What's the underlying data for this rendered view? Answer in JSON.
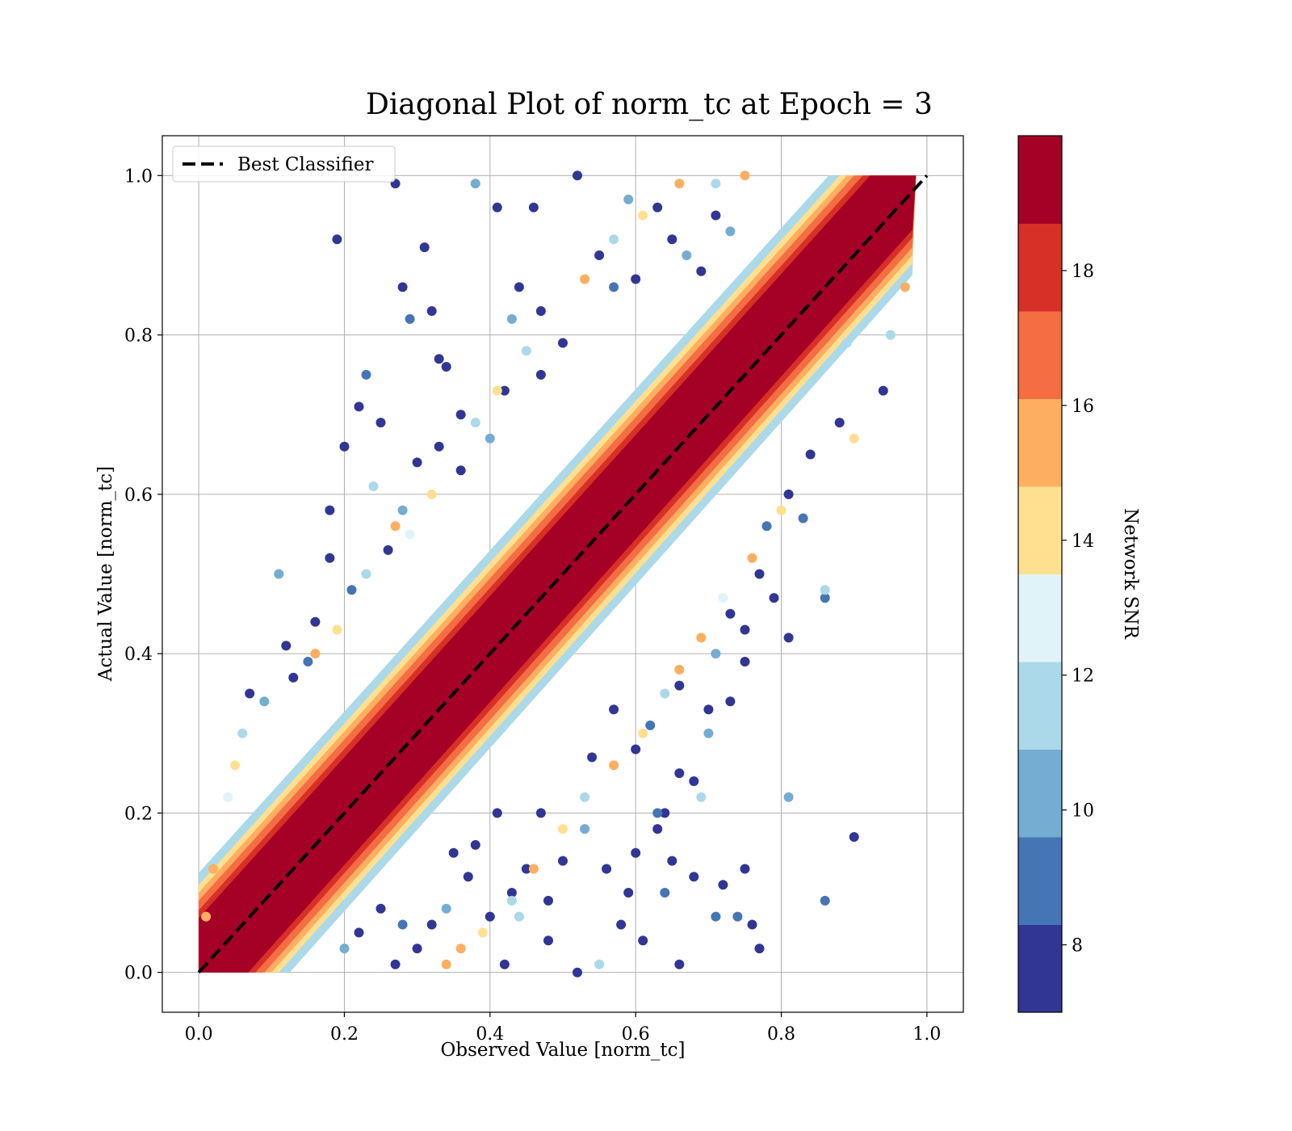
{
  "chart_data": {
    "type": "scatter",
    "title": "Diagonal Plot of norm_tc at Epoch = 3",
    "xlabel": "Observed Value [norm_tc]",
    "ylabel": "Actual Value [norm_tc]",
    "xlim": [
      -0.05,
      1.05
    ],
    "ylim": [
      -0.05,
      1.05
    ],
    "x_ticks": [
      "0.0",
      "0.2",
      "0.4",
      "0.6",
      "0.8",
      "1.0"
    ],
    "y_ticks": [
      "0.0",
      "0.2",
      "0.4",
      "0.6",
      "0.8",
      "1.0"
    ],
    "grid": true,
    "legend": {
      "placement": "top-left",
      "entries": [
        "Best Classifier"
      ]
    },
    "reference_line": {
      "name": "Best Classifier",
      "style": "dashed",
      "color": "#000000",
      "x": [
        0,
        1
      ],
      "y": [
        0,
        1
      ]
    },
    "colorbar": {
      "label": "Network SNR",
      "range": [
        7,
        20
      ],
      "ticks": [
        "8",
        "10",
        "12",
        "14",
        "16",
        "18"
      ],
      "tick_values": [
        8,
        10,
        12,
        14,
        16,
        18
      ],
      "colors": [
        "#313695",
        "#4575b4",
        "#74add1",
        "#abd9e9",
        "#e0f3f8",
        "#fee090",
        "#fdae61",
        "#f46d43",
        "#d73027",
        "#a50026"
      ]
    },
    "points_summary": "dense band of high-SNR points along y = x; lower-SNR points scattered farther from the diagonal",
    "points": [
      [
        0.19,
        0.92,
        8
      ],
      [
        0.27,
        0.99,
        8
      ],
      [
        0.38,
        0.99,
        10
      ],
      [
        0.52,
        1.0,
        8
      ],
      [
        0.59,
        0.97,
        10
      ],
      [
        0.46,
        0.96,
        8
      ],
      [
        0.41,
        0.96,
        8
      ],
      [
        0.31,
        0.91,
        8
      ],
      [
        0.28,
        0.86,
        8
      ],
      [
        0.29,
        0.82,
        9
      ],
      [
        0.32,
        0.83,
        8
      ],
      [
        0.33,
        0.77,
        8
      ],
      [
        0.23,
        0.75,
        9
      ],
      [
        0.22,
        0.71,
        8
      ],
      [
        0.25,
        0.69,
        8
      ],
      [
        0.2,
        0.66,
        8
      ],
      [
        0.24,
        0.61,
        12
      ],
      [
        0.3,
        0.64,
        8
      ],
      [
        0.18,
        0.58,
        8
      ],
      [
        0.11,
        0.5,
        10
      ],
      [
        0.18,
        0.52,
        8
      ],
      [
        0.12,
        0.41,
        8
      ],
      [
        0.13,
        0.37,
        8
      ],
      [
        0.07,
        0.35,
        8
      ],
      [
        0.09,
        0.34,
        10
      ],
      [
        0.21,
        0.48,
        9
      ],
      [
        0.16,
        0.44,
        8
      ],
      [
        0.15,
        0.39,
        9
      ],
      [
        0.34,
        0.76,
        8
      ],
      [
        0.36,
        0.7,
        8
      ],
      [
        0.44,
        0.86,
        8
      ],
      [
        0.47,
        0.83,
        8
      ],
      [
        0.43,
        0.82,
        10
      ],
      [
        0.55,
        0.9,
        8
      ],
      [
        0.57,
        0.86,
        9
      ],
      [
        0.5,
        0.79,
        8
      ],
      [
        0.42,
        0.73,
        8
      ],
      [
        0.47,
        0.75,
        8
      ],
      [
        0.4,
        0.67,
        10
      ],
      [
        0.36,
        0.63,
        8
      ],
      [
        0.33,
        0.66,
        8
      ],
      [
        0.28,
        0.58,
        10
      ],
      [
        0.26,
        0.53,
        8
      ],
      [
        0.63,
        0.96,
        8
      ],
      [
        0.65,
        0.92,
        8
      ],
      [
        0.6,
        0.87,
        8
      ],
      [
        0.67,
        0.9,
        10
      ],
      [
        0.71,
        0.95,
        8
      ],
      [
        0.73,
        0.93,
        10
      ],
      [
        0.69,
        0.88,
        8
      ],
      [
        0.81,
        0.42,
        8
      ],
      [
        0.81,
        0.22,
        10
      ],
      [
        0.86,
        0.09,
        9
      ],
      [
        0.9,
        0.17,
        8
      ],
      [
        0.86,
        0.47,
        9
      ],
      [
        0.94,
        0.73,
        8
      ],
      [
        0.89,
        0.79,
        12
      ],
      [
        0.83,
        0.57,
        9
      ],
      [
        0.81,
        0.6,
        8
      ],
      [
        0.77,
        0.5,
        8
      ],
      [
        0.79,
        0.47,
        8
      ],
      [
        0.75,
        0.43,
        8
      ],
      [
        0.75,
        0.39,
        8
      ],
      [
        0.73,
        0.34,
        8
      ],
      [
        0.7,
        0.33,
        8
      ],
      [
        0.7,
        0.3,
        10
      ],
      [
        0.68,
        0.24,
        8
      ],
      [
        0.69,
        0.22,
        11
      ],
      [
        0.66,
        0.25,
        8
      ],
      [
        0.64,
        0.2,
        8
      ],
      [
        0.63,
        0.2,
        9
      ],
      [
        0.63,
        0.18,
        8
      ],
      [
        0.65,
        0.14,
        8
      ],
      [
        0.68,
        0.12,
        8
      ],
      [
        0.64,
        0.1,
        9
      ],
      [
        0.66,
        0.01,
        8
      ],
      [
        0.75,
        0.13,
        8
      ],
      [
        0.74,
        0.07,
        9
      ],
      [
        0.76,
        0.06,
        8
      ],
      [
        0.77,
        0.03,
        8
      ],
      [
        0.6,
        0.15,
        8
      ],
      [
        0.59,
        0.1,
        8
      ],
      [
        0.53,
        0.18,
        10
      ],
      [
        0.56,
        0.13,
        8
      ],
      [
        0.52,
        0.0,
        8
      ],
      [
        0.48,
        0.04,
        8
      ],
      [
        0.48,
        0.09,
        8
      ],
      [
        0.5,
        0.14,
        8
      ],
      [
        0.47,
        0.2,
        8
      ],
      [
        0.43,
        0.1,
        8
      ],
      [
        0.4,
        0.07,
        8
      ],
      [
        0.42,
        0.01,
        8
      ],
      [
        0.37,
        0.12,
        8
      ],
      [
        0.34,
        0.08,
        10
      ],
      [
        0.32,
        0.06,
        8
      ],
      [
        0.3,
        0.03,
        8
      ],
      [
        0.35,
        0.15,
        8
      ],
      [
        0.38,
        0.16,
        8
      ],
      [
        0.41,
        0.2,
        8
      ],
      [
        0.45,
        0.13,
        8
      ],
      [
        0.28,
        0.06,
        9
      ],
      [
        0.25,
        0.08,
        8
      ],
      [
        0.22,
        0.05,
        8
      ],
      [
        0.2,
        0.03,
        10
      ],
      [
        0.27,
        0.01,
        8
      ],
      [
        0.55,
        0.01,
        11
      ],
      [
        0.58,
        0.06,
        8
      ],
      [
        0.61,
        0.04,
        8
      ],
      [
        0.71,
        0.07,
        9
      ],
      [
        0.72,
        0.11,
        8
      ],
      [
        0.54,
        0.27,
        8
      ],
      [
        0.57,
        0.33,
        8
      ],
      [
        0.6,
        0.28,
        8
      ],
      [
        0.62,
        0.31,
        9
      ],
      [
        0.66,
        0.36,
        8
      ],
      [
        0.71,
        0.4,
        10
      ],
      [
        0.73,
        0.45,
        8
      ],
      [
        0.78,
        0.56,
        9
      ],
      [
        0.84,
        0.65,
        8
      ],
      [
        0.88,
        0.69,
        8
      ],
      [
        0.05,
        0.26,
        14
      ],
      [
        0.06,
        0.3,
        11
      ],
      [
        0.04,
        0.22,
        13
      ],
      [
        0.02,
        0.13,
        16
      ],
      [
        0.01,
        0.07,
        16
      ],
      [
        0.16,
        0.4,
        15
      ],
      [
        0.19,
        0.43,
        14
      ],
      [
        0.23,
        0.5,
        12
      ],
      [
        0.27,
        0.56,
        15
      ],
      [
        0.29,
        0.55,
        13
      ],
      [
        0.32,
        0.6,
        14
      ],
      [
        0.38,
        0.69,
        12
      ],
      [
        0.41,
        0.73,
        14
      ],
      [
        0.45,
        0.78,
        12
      ],
      [
        0.53,
        0.87,
        15
      ],
      [
        0.57,
        0.92,
        12
      ],
      [
        0.61,
        0.95,
        14
      ],
      [
        0.66,
        0.99,
        15
      ],
      [
        0.71,
        0.99,
        12
      ],
      [
        0.75,
        1.0,
        16
      ],
      [
        0.86,
        0.48,
        12
      ],
      [
        0.9,
        0.67,
        14
      ],
      [
        0.95,
        0.8,
        12
      ],
      [
        0.97,
        0.86,
        15
      ],
      [
        0.8,
        0.58,
        14
      ],
      [
        0.76,
        0.52,
        16
      ],
      [
        0.72,
        0.47,
        13
      ],
      [
        0.69,
        0.42,
        15
      ],
      [
        0.64,
        0.35,
        12
      ],
      [
        0.61,
        0.3,
        14
      ],
      [
        0.57,
        0.26,
        15
      ],
      [
        0.53,
        0.22,
        12
      ],
      [
        0.5,
        0.18,
        14
      ],
      [
        0.46,
        0.13,
        16
      ],
      [
        0.43,
        0.09,
        12
      ],
      [
        0.39,
        0.05,
        14
      ],
      [
        0.36,
        0.03,
        15
      ],
      [
        0.34,
        0.01,
        16
      ],
      [
        0.44,
        0.07,
        12
      ],
      [
        0.66,
        0.38,
        16
      ]
    ]
  }
}
